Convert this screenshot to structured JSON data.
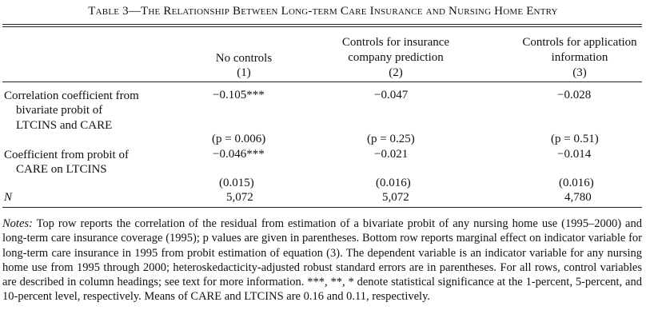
{
  "table": {
    "title": "Table 3—The Relationship Between Long-term Care Insurance and Nursing Home Entry",
    "columns": [
      {
        "line1": "",
        "line2": "No controls",
        "number": "(1)"
      },
      {
        "line1": "Controls for insurance",
        "line2": "company prediction",
        "number": "(2)"
      },
      {
        "line1": "Controls for application",
        "line2": "information",
        "number": "(3)"
      }
    ],
    "row1": {
      "label_lines": [
        "Correlation coefficient from",
        "bivariate probit of",
        "LTCINS and CARE"
      ],
      "values": [
        "−0.105***",
        "−0.047",
        "−0.028"
      ],
      "sub_values": [
        "(p = 0.006)",
        "(p = 0.25)",
        "(p = 0.51)"
      ]
    },
    "row2": {
      "label_lines": [
        "Coefficient from probit of",
        "CARE on LTCINS"
      ],
      "values": [
        "−0.046***",
        "−0.021",
        "−0.014"
      ],
      "sub_values": [
        "(0.015)",
        "(0.016)",
        "(0.016)"
      ]
    },
    "row3": {
      "label": "N",
      "values": [
        "5,072",
        "5,072",
        "4,780"
      ]
    }
  },
  "notes": {
    "label": "Notes:",
    "text": " Top row reports the correlation of the residual from estimation of a bivariate probit of any nursing home use (1995–2000) and long-term care insurance coverage (1995); p values are given in parentheses. Bottom row reports marginal effect on indicator variable for long-term care insurance in 1995 from probit estimation of equation (3). The dependent variable is an indicator variable for any nursing home use from 1995 through 2000; heteroskedacticity-adjusted robust standard errors are in parentheses. For all rows, control variables are described in column headings; see text for more information. ***, **, * denote statistical significance at the 1-percent, 5-percent, and 10-percent level, respectively. Means of CARE and LTCINS are 0.16 and 0.11, respectively."
  }
}
